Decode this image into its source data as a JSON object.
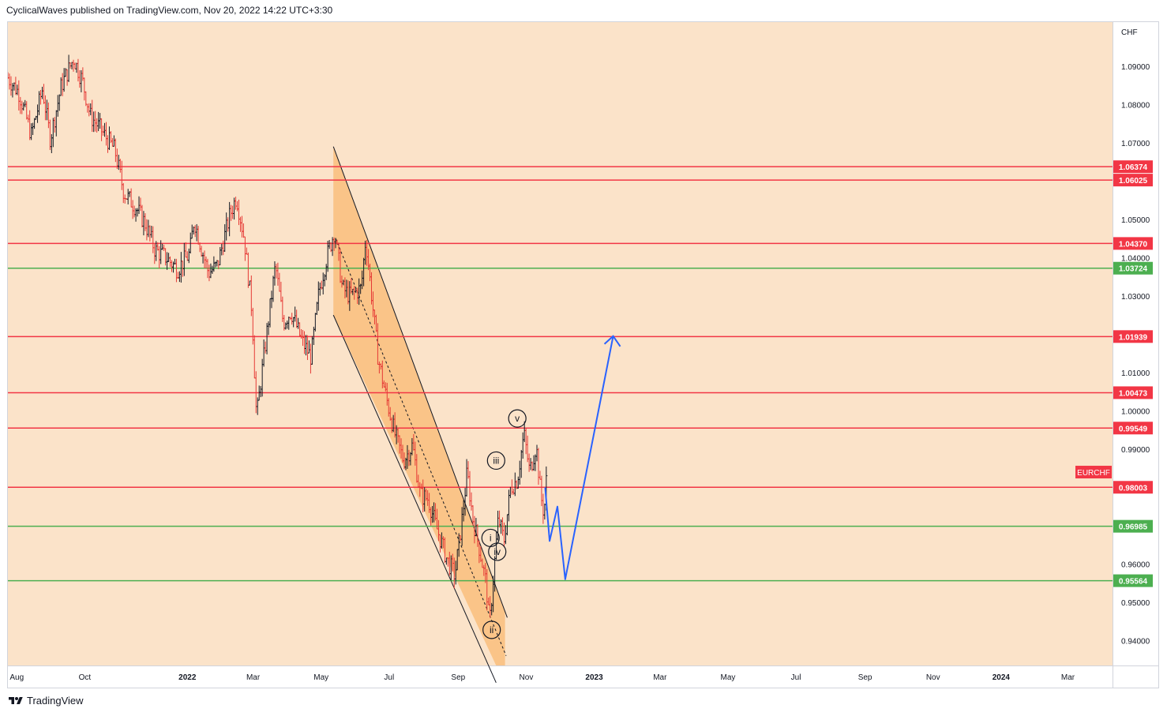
{
  "header": {
    "published_line": "CyclicalWaves published on TradingView.com, Nov 20, 2022 14:22 UTC+3:30"
  },
  "footer": {
    "brand": "TradingView"
  },
  "colors": {
    "background": "#fbe3c9",
    "resistance": "#f23645",
    "support": "#4caf50",
    "projection": "#2962ff",
    "channel_fill": "#f9b971",
    "bar_up": "#131722",
    "bar_down": "#e53935"
  },
  "chart_data": {
    "type": "bar",
    "symbol_label": "EURCHF",
    "currency_label": "CHF",
    "y_ticks": [
      "1.09000",
      "1.08000",
      "1.07000",
      "1.05000",
      "1.04000",
      "1.03000",
      "1.01000",
      "1.00000",
      "0.99000",
      "0.96000",
      "0.95000",
      "0.94000"
    ],
    "y_tick_values": [
      1.09,
      1.08,
      1.07,
      1.05,
      1.04,
      1.03,
      1.01,
      1.0,
      0.99,
      0.96,
      0.95,
      0.94
    ],
    "x_labels": [
      {
        "label": "Aug",
        "date": "2021-08-01",
        "bold": false
      },
      {
        "label": "Oct",
        "date": "2021-10-01",
        "bold": false
      },
      {
        "label": "2022",
        "date": "2022-01-01",
        "bold": true
      },
      {
        "label": "Mar",
        "date": "2022-03-01",
        "bold": false
      },
      {
        "label": "May",
        "date": "2022-05-01",
        "bold": false
      },
      {
        "label": "Jul",
        "date": "2022-07-01",
        "bold": false
      },
      {
        "label": "Sep",
        "date": "2022-09-01",
        "bold": false
      },
      {
        "label": "Nov",
        "date": "2022-11-01",
        "bold": false
      },
      {
        "label": "2023",
        "date": "2023-01-01",
        "bold": true
      },
      {
        "label": "Mar",
        "date": "2023-03-01",
        "bold": false
      },
      {
        "label": "May",
        "date": "2023-05-01",
        "bold": false
      },
      {
        "label": "Jul",
        "date": "2023-07-01",
        "bold": false
      },
      {
        "label": "Sep",
        "date": "2023-09-01",
        "bold": false
      },
      {
        "label": "Nov",
        "date": "2023-11-01",
        "bold": false
      },
      {
        "label": "2024",
        "date": "2024-01-01",
        "bold": true
      },
      {
        "label": "Mar",
        "date": "2024-03-01",
        "bold": false
      }
    ],
    "x_range": [
      "2021-07-24",
      "2024-04-10"
    ],
    "y_range": [
      0.9335,
      1.1015
    ],
    "horizontal_levels": [
      {
        "label": "1.06374",
        "value": 1.06374,
        "kind": "resistance"
      },
      {
        "label": "1.06025",
        "value": 1.06025,
        "kind": "resistance"
      },
      {
        "label": "1.04370",
        "value": 1.0437,
        "kind": "resistance"
      },
      {
        "label": "1.03724",
        "value": 1.03724,
        "kind": "support"
      },
      {
        "label": "1.01939",
        "value": 1.01939,
        "kind": "resistance"
      },
      {
        "label": "1.00473",
        "value": 1.00473,
        "kind": "resistance"
      },
      {
        "label": "0.99549",
        "value": 0.99549,
        "kind": "resistance"
      },
      {
        "label": "0.98003",
        "value": 0.98003,
        "kind": "resistance"
      },
      {
        "label": "0.96985",
        "value": 0.96985,
        "kind": "support"
      },
      {
        "label": "0.95564",
        "value": 0.95564,
        "kind": "support"
      }
    ],
    "price_path": [
      [
        "2021-07-24",
        1.087
      ],
      [
        "2021-08-03",
        1.083
      ],
      [
        "2021-08-14",
        1.072
      ],
      [
        "2021-08-24",
        1.084
      ],
      [
        "2021-08-31",
        1.071
      ],
      [
        "2021-09-10",
        1.085
      ],
      [
        "2021-09-21",
        1.092
      ],
      [
        "2021-09-29",
        1.086
      ],
      [
        "2021-10-06",
        1.077
      ],
      [
        "2021-10-14",
        1.074
      ],
      [
        "2021-10-21",
        1.071
      ],
      [
        "2021-10-28",
        1.068
      ],
      [
        "2021-11-05",
        1.057
      ],
      [
        "2021-11-16",
        1.053
      ],
      [
        "2021-11-24",
        1.049
      ],
      [
        "2021-12-03",
        1.042
      ],
      [
        "2021-12-13",
        1.04
      ],
      [
        "2021-12-23",
        1.037
      ],
      [
        "2022-01-03",
        1.041
      ],
      [
        "2022-01-07",
        1.05
      ],
      [
        "2022-01-14",
        1.042
      ],
      [
        "2022-01-20",
        1.036
      ],
      [
        "2022-01-28",
        1.038
      ],
      [
        "2022-02-08",
        1.051
      ],
      [
        "2022-02-14",
        1.056
      ],
      [
        "2022-02-21",
        1.045
      ],
      [
        "2022-02-28",
        1.026
      ],
      [
        "2022-03-04",
        0.998
      ],
      [
        "2022-03-08",
        1.008
      ],
      [
        "2022-03-14",
        1.022
      ],
      [
        "2022-03-21",
        1.038
      ],
      [
        "2022-03-28",
        1.023
      ],
      [
        "2022-04-04",
        1.026
      ],
      [
        "2022-04-14",
        1.018
      ],
      [
        "2022-04-22",
        1.014
      ],
      [
        "2022-04-29",
        1.031
      ],
      [
        "2022-05-06",
        1.04
      ],
      [
        "2022-05-13",
        1.047
      ],
      [
        "2022-05-20",
        1.032
      ],
      [
        "2022-05-27",
        1.03
      ],
      [
        "2022-06-06",
        1.032
      ],
      [
        "2022-06-10",
        1.045
      ],
      [
        "2022-06-15",
        1.031
      ],
      [
        "2022-06-21",
        1.014
      ],
      [
        "2022-06-28",
        1.004
      ],
      [
        "2022-07-06",
        0.994
      ],
      [
        "2022-07-14",
        0.987
      ],
      [
        "2022-07-22",
        0.991
      ],
      [
        "2022-07-29",
        0.978
      ],
      [
        "2022-08-05",
        0.977
      ],
      [
        "2022-08-12",
        0.97
      ],
      [
        "2022-08-22",
        0.961
      ],
      [
        "2022-08-29",
        0.957
      ],
      [
        "2022-09-05",
        0.973
      ],
      [
        "2022-09-09",
        0.984
      ],
      [
        "2022-09-14",
        0.972
      ],
      [
        "2022-09-20",
        0.964
      ],
      [
        "2022-09-26",
        0.955
      ],
      [
        "2022-09-29",
        0.944
      ],
      [
        "2022-10-03",
        0.958
      ],
      [
        "2022-10-07",
        0.972
      ],
      [
        "2022-10-12",
        0.966
      ],
      [
        "2022-10-18",
        0.98
      ],
      [
        "2022-10-24",
        0.982
      ],
      [
        "2022-10-30",
        0.994
      ],
      [
        "2022-11-04",
        0.984
      ],
      [
        "2022-11-10",
        0.991
      ],
      [
        "2022-11-14",
        0.978
      ],
      [
        "2022-11-17",
        0.973
      ],
      [
        "2022-11-20",
        0.986
      ]
    ],
    "channel": {
      "upper": [
        [
          "2022-05-12",
          1.069
        ],
        [
          "2022-10-15",
          0.946
        ]
      ],
      "lower": [
        [
          "2022-05-12",
          1.025
        ],
        [
          "2022-10-05",
          0.929
        ]
      ],
      "fill_until": "2022-10-13"
    },
    "dashed_trend": [
      [
        "2022-05-14",
        1.045
      ],
      [
        "2022-10-14",
        0.936
      ]
    ],
    "wave_labels": [
      {
        "label": "i",
        "date": "2022-09-30",
        "value": 0.9668
      },
      {
        "label": "ii",
        "date": "2022-10-01",
        "value": 0.9428
      },
      {
        "label": "iii",
        "date": "2022-10-05",
        "value": 0.987
      },
      {
        "label": "iv",
        "date": "2022-10-06",
        "value": 0.9632
      },
      {
        "label": "v",
        "date": "2022-10-24",
        "value": 0.998
      }
    ],
    "projection": [
      [
        "2022-11-18",
        0.98
      ],
      [
        "2022-11-22",
        0.966
      ],
      [
        "2022-11-29",
        0.975
      ],
      [
        "2022-12-06",
        0.956
      ],
      [
        "2023-01-18",
        1.0195
      ]
    ]
  }
}
